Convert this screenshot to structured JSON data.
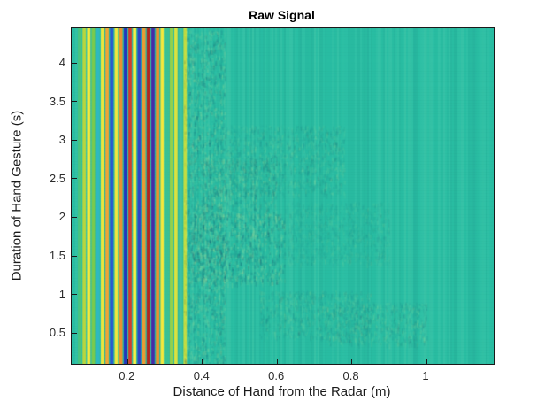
{
  "window": {
    "background": "#ffffff"
  },
  "chart_data": {
    "type": "heatmap",
    "title": "Raw Signal",
    "xlabel": "Distance of Hand from the Radar (m)",
    "ylabel": "Duration of Hand Gesture (s)",
    "x_ticks": [
      0.2,
      0.4,
      0.6,
      0.8,
      1
    ],
    "x_tick_labels": [
      "0.2",
      "0.4",
      "0.6",
      "0.8",
      "1"
    ],
    "y_ticks": [
      0.5,
      1,
      1.5,
      2,
      2.5,
      3,
      3.5,
      4
    ],
    "y_tick_labels": [
      "0.5",
      "1",
      "1.5",
      "2",
      "2.5",
      "3",
      "3.5",
      "4"
    ],
    "xlim": [
      0.05,
      1.18
    ],
    "ylim": [
      0.1,
      4.45
    ],
    "grid": false,
    "legend": "none",
    "colormap": "parula",
    "base_color": "#2abfa4",
    "axis_color": "#1a1a1a",
    "stripe_band_x": [
      0.065,
      0.36
    ],
    "stripes": [
      "#49c47e",
      "#b9d63e",
      "#f4e83c",
      "#7bca4b",
      "#2fb9c0",
      "#e9e63e",
      "#f2a434",
      "#2b59cf",
      "#f4e83c",
      "#ef8f2c",
      "#2336bb",
      "#d63a2a",
      "#f7ef45",
      "#3040c4",
      "#ef9a30",
      "#b2251f",
      "#4629a8",
      "#ef8f2c",
      "#f4e83c",
      "#39c192",
      "#93d14c",
      "#dce23f",
      "#3fc2a4",
      "#c4dd41"
    ],
    "reflection_patches": [
      {
        "x": [
          0.35,
          0.46
        ],
        "y": [
          0.1,
          4.45
        ],
        "intensity": 0.12
      },
      {
        "x": [
          0.37,
          0.62
        ],
        "y": [
          1.15,
          2.05
        ],
        "intensity": 0.14
      },
      {
        "x": [
          0.4,
          0.6
        ],
        "y": [
          2.0,
          2.8
        ],
        "intensity": 0.1
      },
      {
        "x": [
          0.46,
          0.78
        ],
        "y": [
          2.3,
          3.2
        ],
        "intensity": 0.07
      },
      {
        "x": [
          0.55,
          0.85
        ],
        "y": [
          0.45,
          1.05
        ],
        "intensity": 0.07
      },
      {
        "x": [
          0.72,
          1.0
        ],
        "y": [
          0.35,
          0.9
        ],
        "intensity": 0.08
      },
      {
        "x": [
          0.62,
          0.9
        ],
        "y": [
          1.4,
          2.2
        ],
        "intensity": 0.05
      }
    ],
    "description": "Radar raw signal magnitude versus range and time: strong static crosstalk/clutter stripes between 0.1 and 0.35 m across the full gesture duration; faint hand-motion reflections near 0.4-0.9 m; uniform mid-scale teal background elsewhere."
  }
}
